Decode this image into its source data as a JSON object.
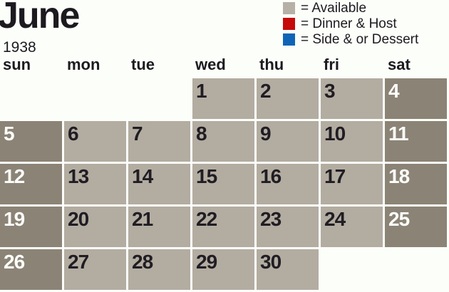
{
  "title": {
    "month": "June",
    "year": "1938"
  },
  "legend": {
    "items": [
      {
        "label": "= Available",
        "color": "#b6b0a7"
      },
      {
        "label": "= Dinner & Host",
        "color": "#c50a0a"
      },
      {
        "label": "= Side & or Dessert",
        "color": "#0f64b6"
      }
    ]
  },
  "weekday_headers": [
    "sun",
    "mon",
    "tue",
    "wed",
    "thu",
    "fri",
    "sat"
  ],
  "colors": {
    "background": "#fcfefa",
    "cell_light": "#b3aca1",
    "cell_dark": "#8b8376",
    "text_dark": "#1c1a1f",
    "text_light": "#fcfcf9"
  },
  "calendar": {
    "weeks": [
      [
        {
          "day": "",
          "variant": "none"
        },
        {
          "day": "",
          "variant": "none"
        },
        {
          "day": "",
          "variant": "none"
        },
        {
          "day": "1",
          "variant": "light"
        },
        {
          "day": "2",
          "variant": "light"
        },
        {
          "day": "3",
          "variant": "light"
        },
        {
          "day": "4",
          "variant": "dark"
        }
      ],
      [
        {
          "day": "5",
          "variant": "dark"
        },
        {
          "day": "6",
          "variant": "light"
        },
        {
          "day": "7",
          "variant": "light"
        },
        {
          "day": "8",
          "variant": "light"
        },
        {
          "day": "9",
          "variant": "light"
        },
        {
          "day": "10",
          "variant": "light"
        },
        {
          "day": "11",
          "variant": "dark"
        }
      ],
      [
        {
          "day": "12",
          "variant": "dark"
        },
        {
          "day": "13",
          "variant": "light"
        },
        {
          "day": "14",
          "variant": "light"
        },
        {
          "day": "15",
          "variant": "light"
        },
        {
          "day": "16",
          "variant": "light"
        },
        {
          "day": "17",
          "variant": "light"
        },
        {
          "day": "18",
          "variant": "dark"
        }
      ],
      [
        {
          "day": "19",
          "variant": "dark"
        },
        {
          "day": "20",
          "variant": "light"
        },
        {
          "day": "21",
          "variant": "light"
        },
        {
          "day": "22",
          "variant": "light"
        },
        {
          "day": "23",
          "variant": "light"
        },
        {
          "day": "24",
          "variant": "light"
        },
        {
          "day": "25",
          "variant": "dark"
        }
      ],
      [
        {
          "day": "26",
          "variant": "dark"
        },
        {
          "day": "27",
          "variant": "light"
        },
        {
          "day": "28",
          "variant": "light"
        },
        {
          "day": "29",
          "variant": "light"
        },
        {
          "day": "30",
          "variant": "light"
        },
        {
          "day": "",
          "variant": "none"
        },
        {
          "day": "",
          "variant": "none"
        }
      ]
    ]
  }
}
